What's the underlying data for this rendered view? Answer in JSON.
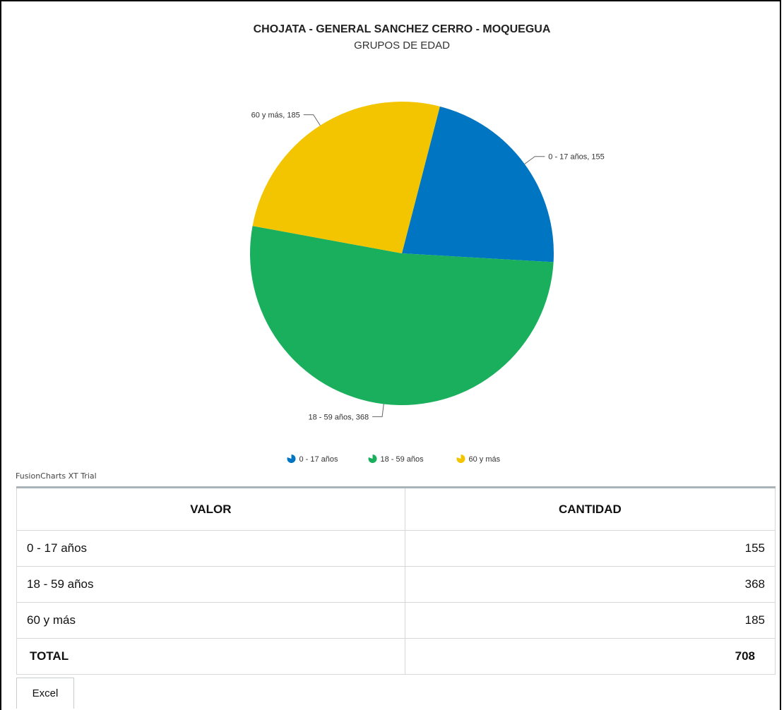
{
  "chart_data": {
    "type": "pie",
    "title": "CHOJATA - GENERAL SANCHEZ CERRO - MOQUEGUA",
    "subtitle": "GRUPOS DE EDAD",
    "categories": [
      "0 - 17 años",
      "18 - 59 años",
      "60 y más"
    ],
    "values": [
      155,
      368,
      185
    ],
    "data_labels": [
      "0 - 17 años, 155",
      "18 - 59 años, 368",
      "60 y más, 185"
    ],
    "colors": [
      "#0075c2",
      "#1aaf5d",
      "#f2c500"
    ],
    "legend_placement": "bottom"
  },
  "watermark": "FusionCharts XT Trial",
  "table": {
    "headers": [
      "VALOR",
      "CANTIDAD"
    ],
    "rows": [
      {
        "label": "0 - 17 años",
        "value": "155"
      },
      {
        "label": "18 - 59 años",
        "value": "368"
      },
      {
        "label": "60 y más",
        "value": "185"
      }
    ],
    "total": {
      "label": "TOTAL",
      "value": "708"
    }
  },
  "excel_button": "Excel"
}
